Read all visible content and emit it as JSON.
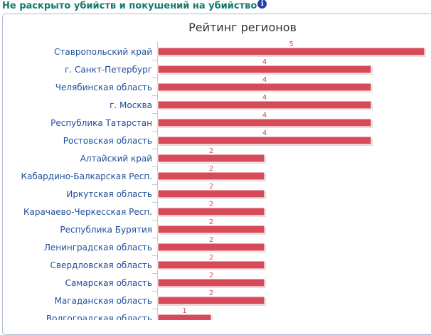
{
  "header": {
    "title": "Не раскрыто убийств и покушений на убийство",
    "info_icon": "info-icon"
  },
  "chart_data": {
    "type": "bar",
    "orientation": "horizontal",
    "title": "Рейтинг регионов",
    "categories": [
      "Ставропольский край",
      "г. Санкт-Петербург",
      "Челябинская область",
      "г. Москва",
      "Республика Татарстан",
      "Ростовская область",
      "Алтайский край",
      "Кабардино-Балкарская Респ.",
      "Иркутская область",
      "Карачаево-Черкесская Респ.",
      "Республика Бурятия",
      "Ленинградская область",
      "Свердловская область",
      "Самарская область",
      "Магаданская область",
      "Волгоградская область"
    ],
    "values": [
      5,
      4,
      4,
      4,
      4,
      4,
      2,
      2,
      2,
      2,
      2,
      2,
      2,
      2,
      2,
      1
    ],
    "xlim": [
      0,
      5
    ],
    "bar_color": "#d64a5a",
    "label_color": "#1f4e9c",
    "data_label_color": "#d64a5a",
    "grid": false,
    "legend": "none"
  }
}
